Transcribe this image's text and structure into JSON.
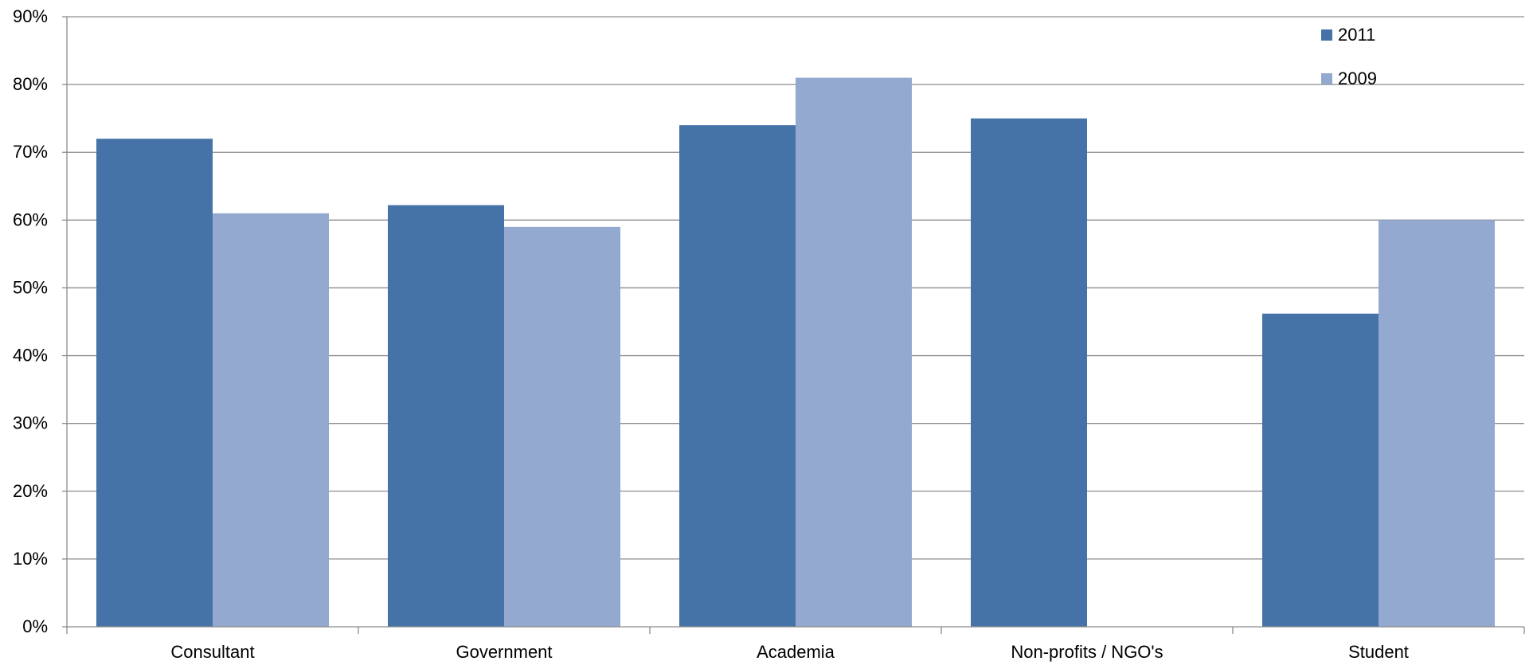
{
  "chart_data": {
    "type": "bar",
    "categories": [
      "Consultant",
      "Government",
      "Academia",
      "Non-profits / NGO's",
      "Student"
    ],
    "series": [
      {
        "name": "2011",
        "values": [
          72,
          62.2,
          74,
          75,
          46.2
        ],
        "color": "#4572a7"
      },
      {
        "name": "2009",
        "values": [
          61,
          59,
          81,
          null,
          60
        ],
        "color": "#93a9cf"
      }
    ],
    "ylim": [
      0,
      90
    ],
    "y_ticks": [
      0,
      10,
      20,
      30,
      40,
      50,
      60,
      70,
      80,
      90
    ],
    "y_tick_format": "percent",
    "grid": true,
    "legend_position": "top-right",
    "title": "",
    "xlabel": "",
    "ylabel": ""
  }
}
